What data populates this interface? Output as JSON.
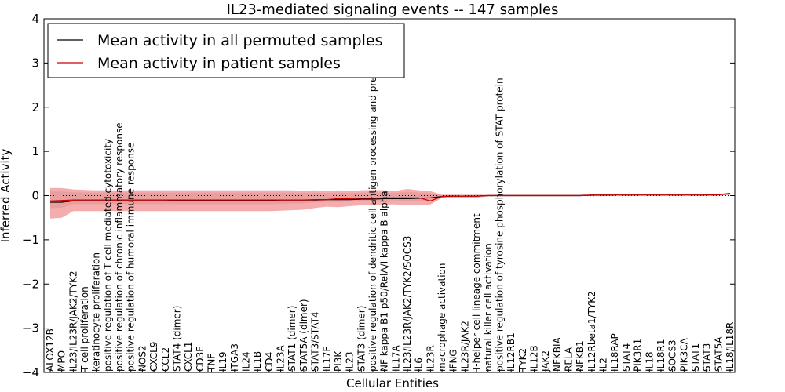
{
  "chart_data": {
    "type": "line",
    "title": "IL23-mediated signaling events -- 147 samples",
    "xlabel": "Cellular Entities",
    "ylabel": "Inferred Activity",
    "ylim": [
      -4,
      4
    ],
    "yticks": [
      -4,
      -3,
      -2,
      -1,
      0,
      1,
      2,
      3,
      4
    ],
    "ytick_labels": [
      "−4",
      "−3",
      "−2",
      "−1",
      "0",
      "1",
      "2",
      "3",
      "4"
    ],
    "zero_line": "dotted",
    "legend_position": "top-left",
    "legend": [
      "Mean activity in all permuted samples",
      "Mean activity in patient samples"
    ],
    "colors": {
      "permuted": "#000000",
      "patient": "#cc0000",
      "patient_band": "#f08080",
      "permuted_band": "#bbbbbb"
    },
    "categories": [
      "ALOX12B",
      "MPO",
      "IL23/IL23R/JAK2/TYK2",
      "T cell proliferation",
      "keratinocyte proliferation",
      "positive regulation of T cell mediated cytotoxicity",
      "positive regulation of chronic inflammatory response",
      "positive regulation of humoral immune response",
      "NOS2",
      "CXCL9",
      "CCL2",
      "STAT4 (dimer)",
      "CXCL1",
      "CD3E",
      "TNF",
      "IL19",
      "ITGA3",
      "IL24",
      "IL1B",
      "CD4",
      "IL23A",
      "STAT1 (dimer)",
      "STAT5A (dimer)",
      "STAT3/STAT4",
      "IL17F",
      "PI3K",
      "IL23",
      "STAT3 (dimer)",
      "positive regulation of dendritic cell antigen processing and presentation",
      "NF kappa B1 p50/RelA/I kappa B alpha",
      "IL17A",
      "IL23/IL23R/JAK2/TYK2/SOCS3",
      "IL6",
      "IL23R",
      "macrophage activation",
      "IFNG",
      "IL23R/JAK2",
      "T-helper cell lineage commitment",
      "natural killer cell activation",
      "positive regulation of tyrosine phosphorylation of STAT protein",
      "IL12RB1",
      "TYK2",
      "IL12B",
      "JAK2",
      "NFKBIA",
      "RELA",
      "NFKB1",
      "IL12Rbeta1/TYK2",
      "IL2",
      "IL18RAP",
      "STAT4",
      "PIK3R1",
      "IL18",
      "IL18R1",
      "SOCS3",
      "PIK3CA",
      "STAT1",
      "STAT3",
      "STAT5A",
      "IL18/IL18R"
    ],
    "series": [
      {
        "name": "Mean activity in all permuted samples",
        "values": [
          -0.15,
          -0.15,
          -0.12,
          -0.12,
          -0.12,
          -0.12,
          -0.12,
          -0.12,
          -0.12,
          -0.12,
          -0.12,
          -0.11,
          -0.11,
          -0.11,
          -0.11,
          -0.11,
          -0.11,
          -0.11,
          -0.11,
          -0.11,
          -0.1,
          -0.1,
          -0.1,
          -0.1,
          -0.09,
          -0.09,
          -0.09,
          -0.08,
          -0.08,
          -0.07,
          -0.07,
          -0.07,
          -0.06,
          -0.05,
          -0.02,
          -0.01,
          -0.01,
          -0.01,
          0,
          0,
          0,
          0,
          0,
          0,
          0,
          0,
          0,
          0.01,
          0.01,
          0.01,
          0.01,
          0.01,
          0.01,
          0.01,
          0.01,
          0.01,
          0.01,
          0.01,
          0.02,
          0.05
        ]
      },
      {
        "name": "Mean activity in patient samples",
        "values": [
          -0.12,
          -0.11,
          -0.1,
          -0.1,
          -0.1,
          -0.1,
          -0.1,
          -0.1,
          -0.1,
          -0.1,
          -0.1,
          -0.1,
          -0.1,
          -0.1,
          -0.1,
          -0.1,
          -0.1,
          -0.1,
          -0.1,
          -0.1,
          -0.1,
          -0.1,
          -0.1,
          -0.09,
          -0.09,
          -0.07,
          -0.07,
          -0.06,
          -0.06,
          -0.05,
          -0.05,
          -0.05,
          -0.05,
          -0.12,
          -0.02,
          -0.01,
          -0.01,
          -0.01,
          0,
          0,
          0,
          0,
          0,
          0,
          0,
          0,
          0,
          0.01,
          0.01,
          0.01,
          0.01,
          0.01,
          0.01,
          0.01,
          0.01,
          0.01,
          0.01,
          0.01,
          0.02,
          0.04
        ],
        "lower": [
          -0.52,
          -0.5,
          -0.35,
          -0.35,
          -0.35,
          -0.35,
          -0.35,
          -0.35,
          -0.35,
          -0.35,
          -0.35,
          -0.35,
          -0.35,
          -0.35,
          -0.35,
          -0.35,
          -0.35,
          -0.35,
          -0.35,
          -0.35,
          -0.34,
          -0.33,
          -0.32,
          -0.28,
          -0.25,
          -0.26,
          -0.24,
          -0.22,
          -0.21,
          -0.2,
          -0.2,
          -0.22,
          -0.22,
          -0.2,
          -0.05,
          -0.05,
          -0.05,
          -0.05,
          -0.01,
          -0.01,
          -0.01,
          -0.01,
          -0.01,
          -0.01,
          -0.01,
          -0.01,
          -0.01,
          -0.01,
          -0.01,
          0,
          0,
          0,
          0,
          0,
          0,
          0,
          0,
          0,
          0,
          0.02
        ],
        "upper": [
          0.17,
          0.17,
          0.14,
          0.13,
          0.12,
          0.12,
          0.12,
          0.12,
          0.12,
          0.12,
          0.12,
          0.12,
          0.12,
          0.12,
          0.12,
          0.12,
          0.12,
          0.12,
          0.12,
          0.12,
          0.12,
          0.12,
          0.11,
          0.12,
          0.1,
          0.12,
          0.1,
          0.12,
          0.13,
          0.12,
          0.11,
          0.15,
          0.12,
          0.1,
          0.02,
          0.02,
          0.02,
          0.02,
          0.02,
          0.02,
          0.02,
          0.02,
          0.02,
          0.02,
          0.02,
          0.02,
          0.02,
          0.04,
          0.03,
          0.03,
          0.03,
          0.03,
          0.03,
          0.03,
          0.03,
          0.03,
          0.03,
          0.03,
          0.04,
          0.06
        ]
      }
    ]
  }
}
